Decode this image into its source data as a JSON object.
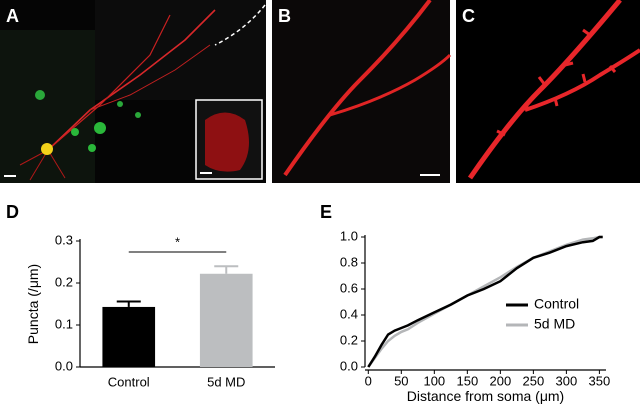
{
  "panel_labels": [
    "A",
    "B",
    "C",
    "D",
    "E"
  ],
  "chart_data": [
    {
      "type": "bar",
      "categories": [
        "Control",
        "5d MD"
      ],
      "values": [
        0.143,
        0.222
      ],
      "errors": [
        0.013,
        0.018
      ],
      "colors": [
        "#000000",
        "#bcbec0"
      ],
      "ylabel": "Puncta (/μm)",
      "annotation": "*",
      "ylim": [
        0,
        0.3
      ],
      "yticks": [
        {
          "value": 0,
          "label": "0.0"
        },
        {
          "value": 0.1,
          "label": "0.1"
        },
        {
          "value": 0.2,
          "label": "0.2"
        },
        {
          "value": 0.3,
          "label": "0.3"
        }
      ]
    },
    {
      "type": "line",
      "xlabel": "Distance from soma (μm)",
      "legend": "lower right",
      "x": [
        0,
        10,
        20,
        30,
        40,
        50,
        60,
        75,
        100,
        125,
        150,
        175,
        200,
        225,
        250,
        275,
        300,
        325,
        340,
        350,
        355
      ],
      "series": [
        {
          "name": "Control",
          "color": "#000000",
          "values": [
            0,
            0.08,
            0.17,
            0.25,
            0.28,
            0.3,
            0.32,
            0.36,
            0.42,
            0.48,
            0.55,
            0.6,
            0.66,
            0.76,
            0.84,
            0.88,
            0.93,
            0.96,
            0.97,
            1.0,
            1.0
          ]
        },
        {
          "name": "5d MD",
          "color": "#b4b6b8",
          "values": [
            0,
            0.07,
            0.14,
            0.2,
            0.24,
            0.27,
            0.29,
            0.34,
            0.41,
            0.48,
            0.55,
            0.62,
            0.69,
            0.77,
            0.84,
            0.89,
            0.94,
            0.98,
            0.99,
            1.0,
            1.0
          ]
        }
      ],
      "xlim": [
        -5,
        360
      ],
      "xticks": [
        0,
        50,
        100,
        150,
        200,
        250,
        300,
        350
      ],
      "ylim": [
        0,
        1.0
      ],
      "yticks": [
        {
          "value": 0,
          "label": "0.0"
        },
        {
          "value": 0.2,
          "label": "0.2"
        },
        {
          "value": 0.4,
          "label": "0.4"
        },
        {
          "value": 0.6,
          "label": "0.6"
        },
        {
          "value": 0.8,
          "label": "0.8"
        },
        {
          "value": 1.0,
          "label": "1.0"
        }
      ]
    }
  ]
}
